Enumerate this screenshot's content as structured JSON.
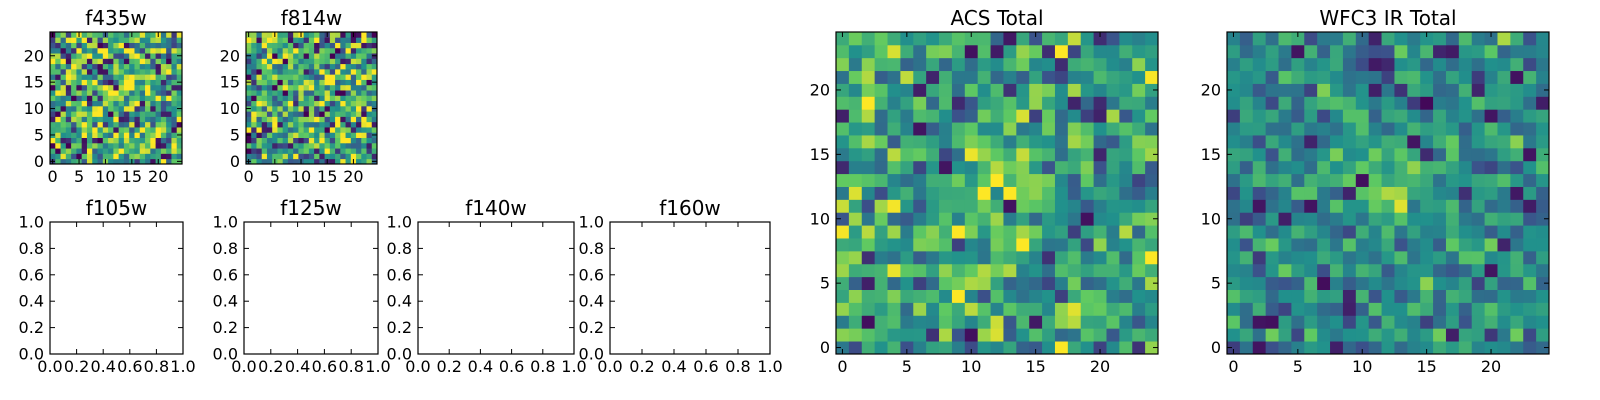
{
  "figure": {
    "background": "#ffffff",
    "colormap": "viridis",
    "colormap_stops": [
      "#440154",
      "#3b528b",
      "#21918c",
      "#5ec962",
      "#fde725"
    ]
  },
  "chart_data": [
    {
      "type": "heatmap",
      "title": "f435w",
      "shape": [
        25,
        25
      ],
      "xlim": [
        -0.5,
        24.5
      ],
      "ylim": [
        -0.5,
        24.5
      ],
      "x_ticks": [
        0,
        5,
        10,
        15,
        20
      ],
      "y_ticks": [
        0,
        5,
        10,
        15,
        20
      ],
      "tick_labels_x": [
        "0",
        "5",
        "10",
        "15",
        "20"
      ],
      "tick_labels_y": [
        "0",
        "5",
        "10",
        "15",
        "20"
      ],
      "noise": "high",
      "peak": [
        13,
        13
      ],
      "seed": 11
    },
    {
      "type": "heatmap",
      "title": "f814w",
      "shape": [
        25,
        25
      ],
      "xlim": [
        -0.5,
        24.5
      ],
      "ylim": [
        -0.5,
        24.5
      ],
      "x_ticks": [
        0,
        5,
        10,
        15,
        20
      ],
      "y_ticks": [
        0,
        5,
        10,
        15,
        20
      ],
      "tick_labels_x": [
        "0",
        "5",
        "10",
        "15",
        "20"
      ],
      "tick_labels_y": [
        "0",
        "5",
        "10",
        "15",
        "20"
      ],
      "noise": "high",
      "peak": [
        12,
        13
      ],
      "seed": 23
    },
    {
      "type": "empty",
      "title": "f105w",
      "xlim": [
        0,
        1
      ],
      "ylim": [
        0,
        1
      ],
      "tick_labels_x": [
        "0.0",
        "0.2",
        "0.4",
        "0.6",
        "0.8",
        "1.0"
      ],
      "tick_labels_y": [
        "0.0",
        "0.2",
        "0.4",
        "0.6",
        "0.8",
        "1.0"
      ]
    },
    {
      "type": "empty",
      "title": "f125w",
      "xlim": [
        0,
        1
      ],
      "ylim": [
        0,
        1
      ],
      "tick_labels_x": [
        "0.0",
        "0.2",
        "0.4",
        "0.6",
        "0.8",
        "1.0"
      ],
      "tick_labels_y": [
        "0.0",
        "0.2",
        "0.4",
        "0.6",
        "0.8",
        "1.0"
      ]
    },
    {
      "type": "empty",
      "title": "f140w",
      "xlim": [
        0,
        1
      ],
      "ylim": [
        0,
        1
      ],
      "tick_labels_x": [
        "0.0",
        "0.2",
        "0.4",
        "0.6",
        "0.8",
        "1.0"
      ],
      "tick_labels_y": [
        "0.0",
        "0.2",
        "0.4",
        "0.6",
        "0.8",
        "1.0"
      ]
    },
    {
      "type": "empty",
      "title": "f160w",
      "xlim": [
        0,
        1
      ],
      "ylim": [
        0,
        1
      ],
      "tick_labels_x": [
        "0.0",
        "0.2",
        "0.4",
        "0.6",
        "0.8",
        "1.0"
      ],
      "tick_labels_y": [
        "0.0",
        "0.2",
        "0.4",
        "0.6",
        "0.8",
        "1.0"
      ]
    },
    {
      "type": "heatmap",
      "title": "ACS Total",
      "shape": [
        25,
        25
      ],
      "xlim": [
        -0.5,
        24.5
      ],
      "ylim": [
        -0.5,
        24.5
      ],
      "x_ticks": [
        0,
        5,
        10,
        15,
        20
      ],
      "y_ticks": [
        0,
        5,
        10,
        15,
        20
      ],
      "tick_labels_x": [
        "0",
        "5",
        "10",
        "15",
        "20"
      ],
      "tick_labels_y": [
        "0",
        "5",
        "10",
        "15",
        "20"
      ],
      "noise": "medium",
      "peak": [
        13,
        13
      ],
      "seed": 37
    },
    {
      "type": "heatmap",
      "title": "WFC3 IR Total",
      "shape": [
        25,
        25
      ],
      "xlim": [
        -0.5,
        24.5
      ],
      "ylim": [
        -0.5,
        24.5
      ],
      "x_ticks": [
        0,
        5,
        10,
        15,
        20
      ],
      "y_ticks": [
        0,
        5,
        10,
        15,
        20
      ],
      "tick_labels_x": [
        "0",
        "5",
        "10",
        "15",
        "20"
      ],
      "tick_labels_y": [
        "0",
        "5",
        "10",
        "15",
        "20"
      ],
      "noise": "low",
      "peak": [
        12,
        13
      ],
      "seed": 53
    }
  ]
}
